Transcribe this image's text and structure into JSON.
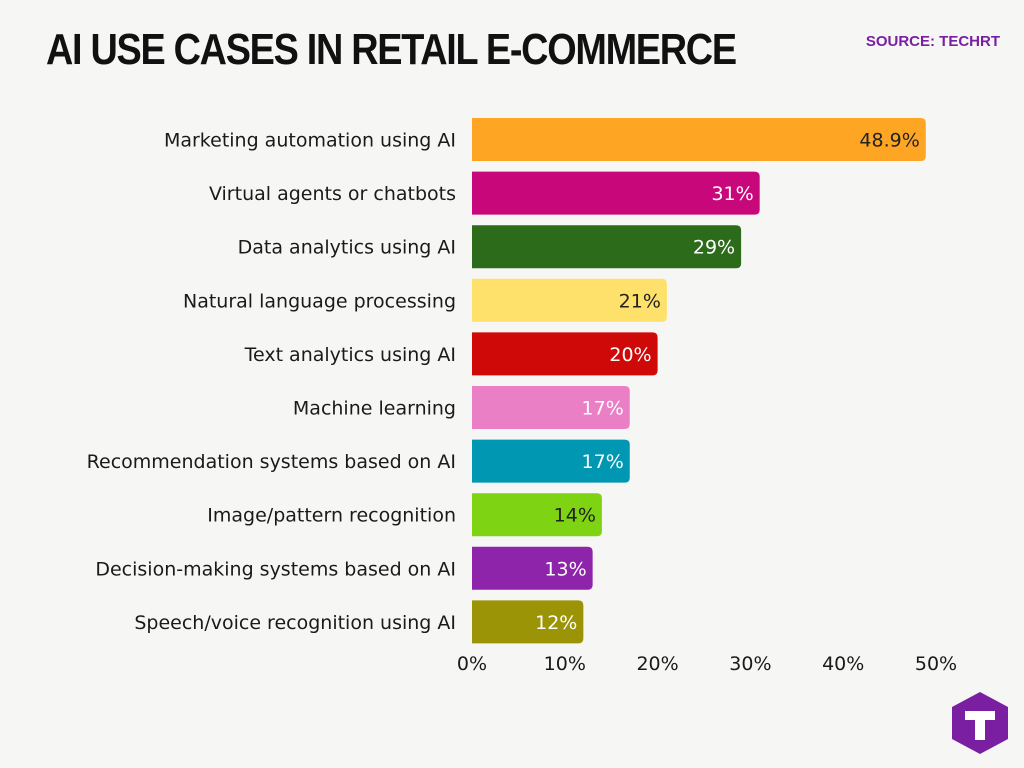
{
  "header": {
    "title": "AI USE CASES IN RETAIL E-COMMERCE",
    "source": "SOURCE: TECHRT"
  },
  "logo": {
    "icon": "techrt-logo-icon",
    "color": "#7a1fa2"
  },
  "chart_data": {
    "type": "bar",
    "orientation": "horizontal",
    "title": "",
    "xlabel": "",
    "ylabel": "",
    "xlim": [
      0,
      50
    ],
    "x_ticks": [
      "0%",
      "10%",
      "20%",
      "30%",
      "40%",
      "50%"
    ],
    "x_tick_values": [
      0,
      10,
      20,
      30,
      40,
      50
    ],
    "grid": false,
    "legend": "none",
    "categories": [
      "Marketing automation using AI",
      "Virtual agents or chatbots",
      "Data analytics using AI",
      "Natural language processing",
      "Text analytics using AI",
      "Machine learning",
      "Recommendation systems based on AI",
      "Image/pattern recognition",
      "Decision-making systems based on AI",
      "Speech/voice recognition using AI"
    ],
    "values": [
      48.9,
      31,
      29,
      21,
      20,
      17,
      17,
      14,
      13,
      12
    ],
    "value_labels": [
      "48.9%",
      "31%",
      "29%",
      "21%",
      "20%",
      "17%",
      "17%",
      "14%",
      "13%",
      "12%"
    ],
    "colors": [
      "#fea623",
      "#c8087a",
      "#2c6b1a",
      "#fde16a",
      "#cf0808",
      "#ea7fc6",
      "#0097b2",
      "#7ed313",
      "#8e24aa",
      "#9c9407"
    ],
    "label_colors": [
      "#222222",
      "#ffffff",
      "#ffffff",
      "#222222",
      "#ffffff",
      "#ffffff",
      "#ffffff",
      "#222222",
      "#ffffff",
      "#ffffff"
    ]
  }
}
